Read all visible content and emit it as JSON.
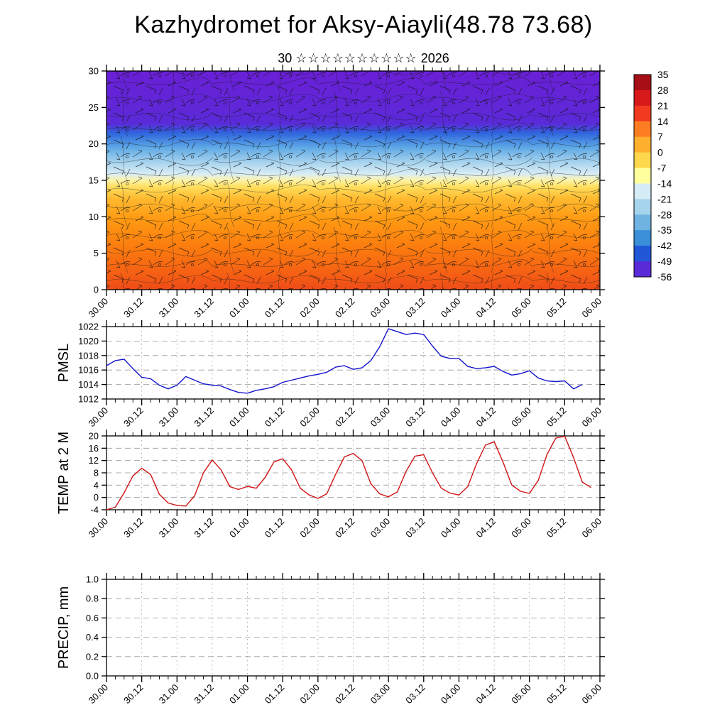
{
  "title": "Kazhydromet for Aksy-Aiayli(48.78 73.68)",
  "subtitle": {
    "day": "30",
    "stars": "☆☆☆☆☆☆☆☆☆☆",
    "year": "2026"
  },
  "time_ticks": [
    "30.00",
    "30.12",
    "31.00",
    "31.12",
    "01.00",
    "01.12",
    "02.00",
    "02.12",
    "03.00",
    "03.12",
    "04.00",
    "04.12",
    "05.00",
    "05.12",
    "06.00"
  ],
  "chart_data": [
    {
      "id": "xsection",
      "type": "heatmap",
      "title": "Time-height cross-section: temperature shading with wind barbs/streamlines",
      "x_range_hours": [
        0,
        168
      ],
      "ylim": [
        0,
        30
      ],
      "ytick_values": [
        0,
        5,
        10,
        15,
        20,
        25,
        30
      ],
      "ytick_labels": [
        "0",
        "5",
        "10",
        "15",
        "20",
        "25",
        "30"
      ],
      "gradient_stops": [
        {
          "offset": 0.0,
          "color": "#6a1fd6"
        },
        {
          "offset": 0.24,
          "color": "#5b2ad8"
        },
        {
          "offset": 0.285,
          "color": "#2f66dd"
        },
        {
          "offset": 0.35,
          "color": "#5ea9e6"
        },
        {
          "offset": 0.42,
          "color": "#a9d4ee"
        },
        {
          "offset": 0.47,
          "color": "#d8ecf6"
        },
        {
          "offset": 0.5,
          "color": "#fdf3a8"
        },
        {
          "offset": 0.53,
          "color": "#ffdf5e"
        },
        {
          "offset": 0.585,
          "color": "#ffb92e"
        },
        {
          "offset": 0.67,
          "color": "#ff9c14"
        },
        {
          "offset": 0.8,
          "color": "#fb7d0e"
        },
        {
          "offset": 0.93,
          "color": "#f55f14"
        },
        {
          "offset": 1.0,
          "color": "#ee4b18"
        }
      ],
      "colorbar": {
        "tick_labels": [
          "35",
          "28",
          "21",
          "14",
          "7",
          "0",
          "-7",
          "-14",
          "-21",
          "-28",
          "-35",
          "-42",
          "-49",
          "-56"
        ],
        "band_colors": [
          "#a50f15",
          "#d7191c",
          "#f03b20",
          "#fd7d23",
          "#feb02e",
          "#ffd74d",
          "#ffff9e",
          "#d5ecf7",
          "#a6d4ec",
          "#6fb3e2",
          "#3a8fd8",
          "#2257d8",
          "#5b2ad8"
        ]
      }
    },
    {
      "id": "pmsl",
      "type": "line",
      "ylabel": "PMSL",
      "color": "#1414cc",
      "ylim": [
        1012,
        1022
      ],
      "ytick_values": [
        1012,
        1014,
        1016,
        1018,
        1020,
        1022
      ],
      "ytick_labels": [
        "1012",
        "1014",
        "1016",
        "1018",
        "1020",
        "1022"
      ],
      "x_hours": [
        0,
        3,
        6,
        9,
        12,
        15,
        18,
        21,
        24,
        27,
        30,
        33,
        36,
        39,
        42,
        45,
        48,
        51,
        54,
        57,
        60,
        63,
        66,
        69,
        72,
        75,
        78,
        81,
        84,
        87,
        90,
        93,
        96,
        99,
        102,
        105,
        108,
        111,
        114,
        117,
        120,
        123,
        126,
        129,
        132,
        135,
        138,
        141,
        144,
        147,
        150,
        153,
        156,
        159,
        162
      ],
      "values": [
        1016.6,
        1017.3,
        1017.5,
        1016.2,
        1015.0,
        1014.8,
        1013.9,
        1013.4,
        1013.9,
        1015.1,
        1014.6,
        1014.1,
        1013.9,
        1013.8,
        1013.3,
        1012.9,
        1012.8,
        1013.2,
        1013.4,
        1013.7,
        1014.3,
        1014.6,
        1014.9,
        1015.2,
        1015.4,
        1015.7,
        1016.4,
        1016.6,
        1016.1,
        1016.3,
        1017.3,
        1019.2,
        1021.7,
        1021.3,
        1020.9,
        1021.1,
        1020.9,
        1019.3,
        1017.9,
        1017.6,
        1017.6,
        1016.5,
        1016.2,
        1016.3,
        1016.5,
        1015.8,
        1015.3,
        1015.5,
        1015.9,
        1014.9,
        1014.5,
        1014.4,
        1014.5,
        1013.4,
        1014.0
      ]
    },
    {
      "id": "temp2m",
      "type": "line",
      "ylabel": "TEMP at 2 M",
      "color": "#d01414",
      "ylim": [
        -4,
        20
      ],
      "ytick_values": [
        -4,
        0,
        4,
        8,
        12,
        16,
        20
      ],
      "ytick_labels": [
        "-4",
        "0",
        "4",
        "8",
        "12",
        "16",
        "20"
      ],
      "x_hours": [
        0,
        3,
        6,
        9,
        12,
        15,
        18,
        21,
        24,
        27,
        30,
        33,
        36,
        39,
        42,
        45,
        48,
        51,
        54,
        57,
        60,
        63,
        66,
        69,
        72,
        75,
        78,
        81,
        84,
        87,
        90,
        93,
        96,
        99,
        102,
        105,
        108,
        111,
        114,
        117,
        120,
        123,
        126,
        129,
        132,
        135,
        138,
        141,
        144,
        147,
        150,
        153,
        156,
        159,
        162,
        165
      ],
      "values": [
        -4.0,
        -3.2,
        1.5,
        7.0,
        9.5,
        7.5,
        1.0,
        -1.8,
        -2.6,
        -2.8,
        0.5,
        8.0,
        12.2,
        9.0,
        3.5,
        2.6,
        3.6,
        3.0,
        6.5,
        11.5,
        12.6,
        9.0,
        3.0,
        0.8,
        -0.3,
        1.2,
        7.5,
        13.2,
        14.3,
        12.0,
        4.5,
        1.2,
        0.2,
        1.8,
        8.5,
        13.4,
        13.9,
        8.0,
        3.0,
        1.4,
        0.8,
        3.5,
        11.0,
        17.0,
        18.1,
        11.5,
        4.0,
        2.0,
        1.3,
        5.5,
        14.0,
        19.3,
        19.9,
        13.0,
        5.0,
        3.2
      ]
    },
    {
      "id": "precip",
      "type": "line",
      "ylabel": "PRECIP, mm",
      "color": "#109010",
      "ylim": [
        0,
        1
      ],
      "ytick_values": [
        0,
        0.2,
        0.4,
        0.6,
        0.8,
        1.0
      ],
      "ytick_labels": [
        "0.0",
        "0.2",
        "0.4",
        "0.6",
        "0.8",
        "1.0"
      ],
      "x_hours": [],
      "values": []
    }
  ]
}
